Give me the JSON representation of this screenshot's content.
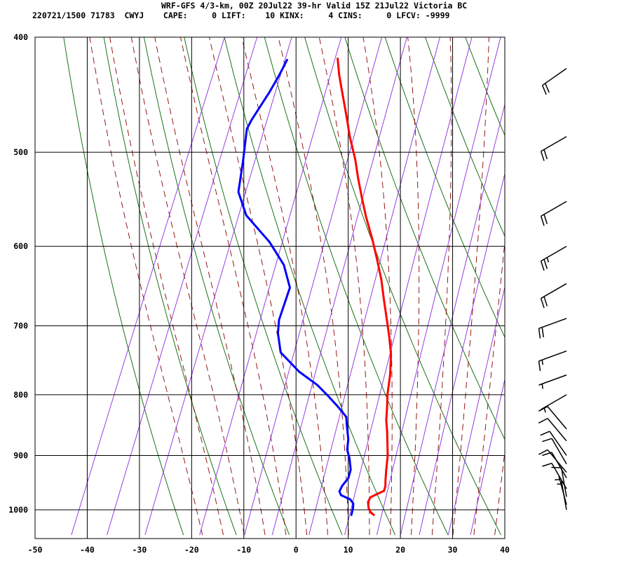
{
  "header": {
    "line1": "WRF-GFS 4/3-km, 00Z 20Jul22 39-hr Valid 15Z 21Jul22 Victoria BC",
    "line2": "220721/1500 71783  CWYJ    CAPE:     0 LIFT:    10 KINX:     4 CINS:     0 LFCV: -9999"
  },
  "colors": {
    "temperature": "#ff0000",
    "dewpoint": "#0000ff",
    "isotherm": "#000000",
    "isobar": "#000000",
    "dry_adiabat": "#006400",
    "moist_adiabat": "#8b0000",
    "mixing_ratio": "#8a2be2",
    "wind_barb": "#000000"
  },
  "chart_data": {
    "type": "line",
    "title": "",
    "xlabel": "",
    "ylabel": "",
    "xlim": [
      -50,
      40
    ],
    "ylim": [
      1040,
      400
    ],
    "y_scale": "log",
    "grid": true,
    "x_ticks": [
      "-50",
      "-40",
      "-30",
      "-20",
      "-10",
      "0",
      "10",
      "20",
      "30",
      "40"
    ],
    "y_ticks": [
      "400",
      "500",
      "600",
      "700",
      "800",
      "900",
      "1000"
    ],
    "series": [
      {
        "key": "temperature",
        "points": [
          [
            15.3,
            1010
          ],
          [
            14.5,
            1005
          ],
          [
            13.8,
            997
          ],
          [
            13.2,
            985
          ],
          [
            13.3,
            976
          ],
          [
            14.3,
            970
          ],
          [
            15.4,
            964
          ],
          [
            15.3,
            955
          ],
          [
            14.9,
            945
          ],
          [
            14.2,
            925
          ],
          [
            13.4,
            900
          ],
          [
            11.5,
            860
          ],
          [
            10.4,
            840
          ],
          [
            9.6,
            820
          ],
          [
            8.7,
            800
          ],
          [
            7.7,
            770
          ],
          [
            6.3,
            740
          ],
          [
            4.6,
            715
          ],
          [
            2.7,
            690
          ],
          [
            0.7,
            665
          ],
          [
            -1.3,
            640
          ],
          [
            -3.7,
            615
          ],
          [
            -6.1,
            592
          ],
          [
            -9.0,
            567
          ],
          [
            -11.3,
            546
          ],
          [
            -13.6,
            525
          ],
          [
            -15.5,
            507
          ],
          [
            -18.3,
            485
          ],
          [
            -20.4,
            467
          ],
          [
            -23.8,
            440
          ],
          [
            -25.1,
            430
          ],
          [
            -26.6,
            417
          ]
        ]
      },
      {
        "key": "dewpoint",
        "points": [
          [
            11.0,
            1010
          ],
          [
            10.8,
            997
          ],
          [
            10.5,
            988
          ],
          [
            9.6,
            980
          ],
          [
            7.5,
            972
          ],
          [
            6.9,
            965
          ],
          [
            7.0,
            955
          ],
          [
            7.6,
            940
          ],
          [
            7.4,
            925
          ],
          [
            6.3,
            905
          ],
          [
            5.2,
            890
          ],
          [
            4.6,
            872
          ],
          [
            3.2,
            848
          ],
          [
            2.5,
            835
          ],
          [
            0.0,
            818
          ],
          [
            -2.9,
            800
          ],
          [
            -5.5,
            785
          ],
          [
            -10.0,
            765
          ],
          [
            -15.0,
            737
          ],
          [
            -17.0,
            710
          ],
          [
            -17.8,
            692
          ],
          [
            -18.2,
            650
          ],
          [
            -21.1,
            622
          ],
          [
            -25.6,
            595
          ],
          [
            -32.1,
            565
          ],
          [
            -35.4,
            540
          ],
          [
            -36.8,
            510
          ],
          [
            -38.6,
            478
          ],
          [
            -38.4,
            470
          ],
          [
            -37.1,
            445
          ],
          [
            -36.5,
            430
          ],
          [
            -36.2,
            418
          ]
        ]
      }
    ],
    "wind_barbs": [
      {
        "p": 1000,
        "dir": 350,
        "spd": 5
      },
      {
        "p": 990,
        "dir": 345,
        "spd": 5
      },
      {
        "p": 975,
        "dir": 350,
        "spd": 10
      },
      {
        "p": 960,
        "dir": 330,
        "spd": 10
      },
      {
        "p": 940,
        "dir": 330,
        "spd": 10
      },
      {
        "p": 930,
        "dir": 320,
        "spd": 10
      },
      {
        "p": 915,
        "dir": 330,
        "spd": 10
      },
      {
        "p": 900,
        "dir": 325,
        "spd": 10
      },
      {
        "p": 875,
        "dir": 320,
        "spd": 10
      },
      {
        "p": 855,
        "dir": 320,
        "spd": 10
      },
      {
        "p": 800,
        "dir": 240,
        "spd": 5
      },
      {
        "p": 770,
        "dir": 250,
        "spd": 5
      },
      {
        "p": 735,
        "dir": 250,
        "spd": 15
      },
      {
        "p": 690,
        "dir": 250,
        "spd": 20
      },
      {
        "p": 645,
        "dir": 240,
        "spd": 20
      },
      {
        "p": 600,
        "dir": 240,
        "spd": 25
      },
      {
        "p": 550,
        "dir": 240,
        "spd": 20
      },
      {
        "p": 485,
        "dir": 240,
        "spd": 20
      },
      {
        "p": 425,
        "dir": 235,
        "spd": 20
      }
    ]
  }
}
